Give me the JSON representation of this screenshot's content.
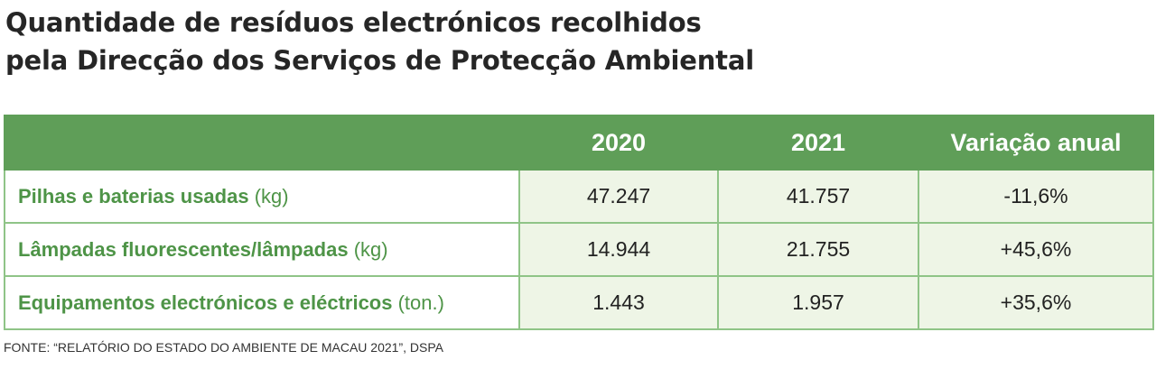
{
  "chart_data": {
    "type": "table",
    "title": "Quantidade de resíduos electrónicos recolhidos pela Direcção dos Serviços de Protecção Ambiental",
    "title_lines": [
      "Quantidade de resíduos electrónicos recolhidos",
      "pela Direcção dos Serviços de Protecção Ambiental"
    ],
    "columns": [
      "",
      "2020",
      "2021",
      "Variação anual"
    ],
    "rows": [
      {
        "label": "Pilhas e baterias usadas",
        "unit": "(kg)",
        "values": [
          "47.247",
          "41.757",
          "-11,6%"
        ]
      },
      {
        "label": "Lâmpadas fluorescentes/lâmpadas",
        "unit": "(kg)",
        "values": [
          "14.944",
          "21.755",
          "+45,6%"
        ]
      },
      {
        "label": "Equipamentos electrónicos e eléctricos",
        "unit": "(ton.)",
        "values": [
          "1.443",
          "1.957",
          "+35,6%"
        ]
      }
    ],
    "source": "FONTE: “RELATÓRIO DO ESTADO DO AMBIENTE DE MACAU 2021”, DSPA"
  },
  "colors": {
    "header_bg": "#5f9e58",
    "label_text": "#4e9447",
    "cell_bg": "#eef5e6",
    "border": "#8fc487"
  }
}
